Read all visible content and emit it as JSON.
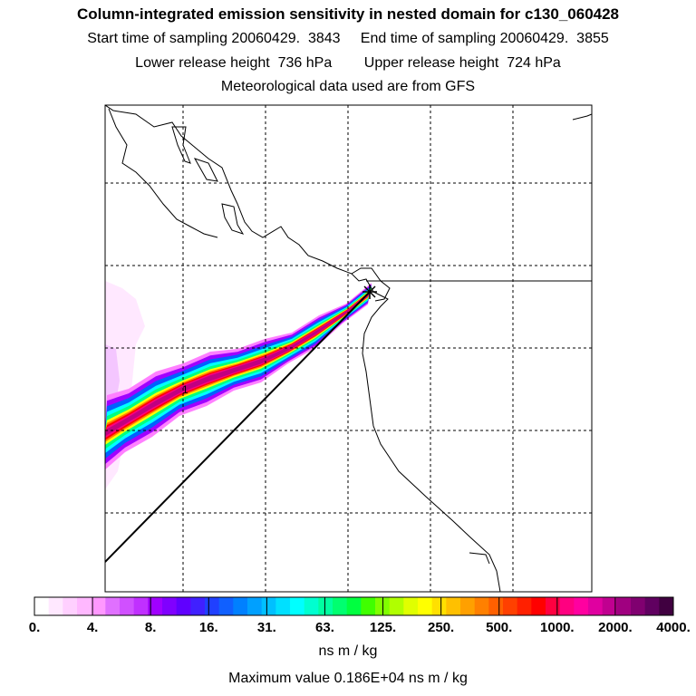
{
  "header": {
    "title": "Column-integrated emission sensitivity in nested domain for c130_060428",
    "start_label": "Start time of sampling",
    "start_value": "20060429.  3843",
    "end_label": "End time of sampling",
    "end_value": "20060429.  3855",
    "lower_label": "Lower release height",
    "lower_value": "736 hPa",
    "upper_label": "Upper release height",
    "upper_value": "724 hPa",
    "met_text": "Meteorological data used are from GFS"
  },
  "map": {
    "marker_label": "1",
    "gridlines": "dashed",
    "plume_colors": [
      "#ffd0ff",
      "#ff80ff",
      "#a000ff",
      "#0060ff",
      "#00ffff",
      "#00ff80",
      "#ffff00",
      "#ff8000",
      "#ff0000",
      "#ff0080",
      "#c00080"
    ]
  },
  "colorbar": {
    "labels": [
      "0.",
      "4.",
      "8.",
      "16.",
      "31.",
      "63.",
      "125.",
      "250.",
      "500.",
      "1000.",
      "2000.",
      "4000."
    ],
    "colors": [
      "#ffffff",
      "#ffe8ff",
      "#ffd0ff",
      "#ffb8ff",
      "#ff98ff",
      "#e070ff",
      "#d050ff",
      "#c030ff",
      "#a000ff",
      "#8000ff",
      "#6000ff",
      "#4020ff",
      "#2040ff",
      "#1060ff",
      "#0080ff",
      "#00a0ff",
      "#00c0ff",
      "#00e0ff",
      "#00ffff",
      "#00ffd0",
      "#00ffa0",
      "#00ff70",
      "#00ff40",
      "#40ff00",
      "#80ff00",
      "#b0ff00",
      "#e0ff00",
      "#ffff00",
      "#ffe000",
      "#ffc000",
      "#ffa000",
      "#ff8000",
      "#ff6000",
      "#ff4000",
      "#ff2000",
      "#ff0000",
      "#ff0040",
      "#ff0080",
      "#ff00a0",
      "#e000a0",
      "#c00090",
      "#a00080",
      "#800070",
      "#600060",
      "#400040"
    ],
    "units": "ns m / kg",
    "max_value": "Maximum value  0.186E+04 ns m / kg"
  }
}
